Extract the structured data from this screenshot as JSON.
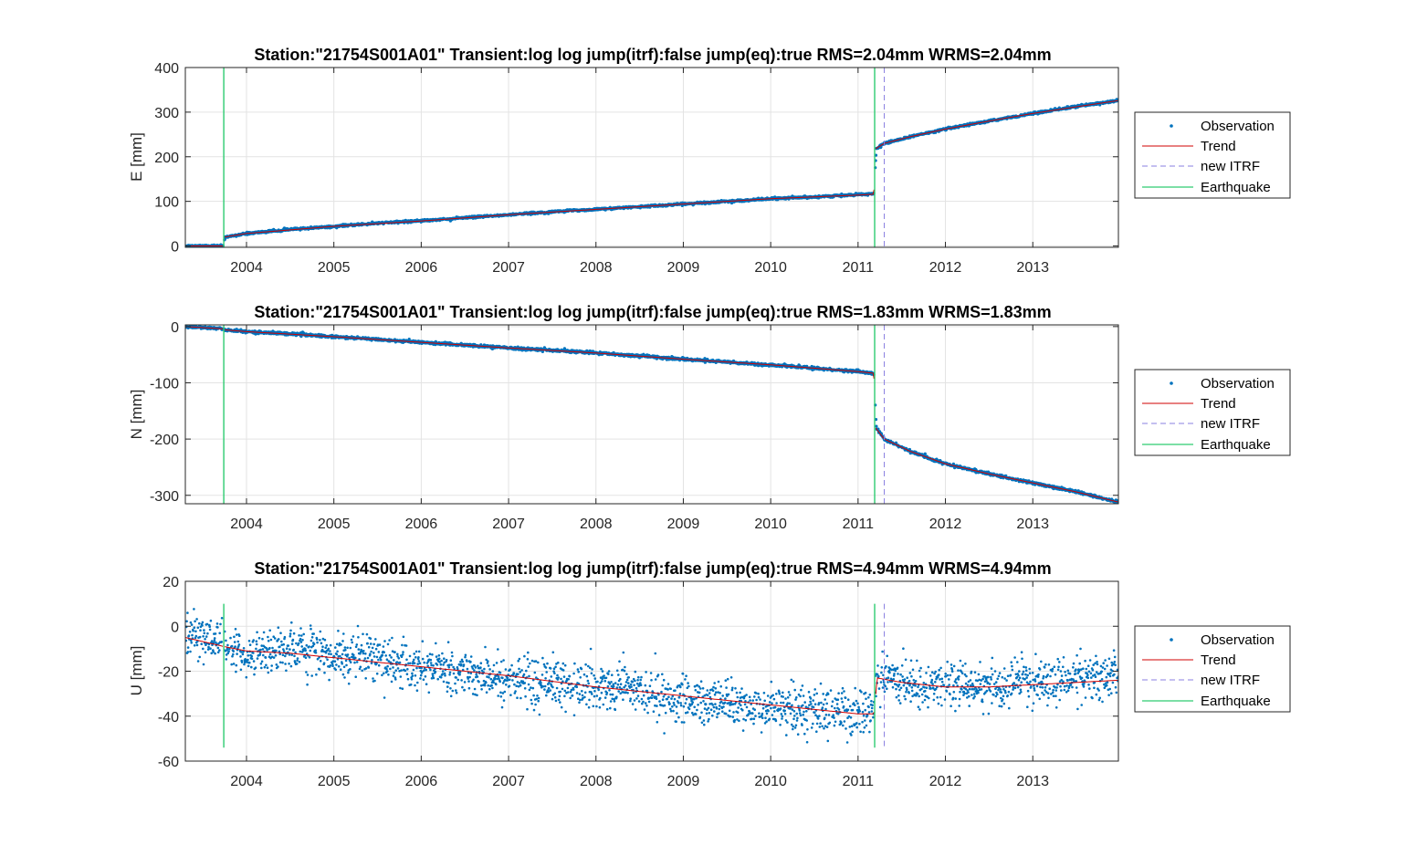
{
  "colors": {
    "observation": "#0072BD",
    "trend": "#D00000",
    "new_itrf": "#8A7FE0",
    "earthquake": "#2ECC71",
    "grid": "#E3E3E3",
    "axis": "#262626"
  },
  "legend": {
    "placement": "outside-right",
    "entries": [
      "Observation",
      "Trend",
      "new ITRF",
      "Earthquake"
    ]
  },
  "chart_data": [
    {
      "type": "scatter",
      "title": "Station:\"21754S001A01\" Transient:log log jump(itrf):false  jump(eq):true  RMS=2.04mm WRMS=2.04mm",
      "ylabel": "E [mm]",
      "xlabel": "",
      "xlim": [
        2003.3,
        2013.98
      ],
      "ylim": [
        -3,
        400
      ],
      "yticks": [
        0,
        100,
        200,
        300,
        400
      ],
      "ytick_labels": [
        "0",
        "100",
        "200",
        "300",
        "400"
      ],
      "xticks": [
        2004,
        2005,
        2006,
        2007,
        2008,
        2009,
        2010,
        2011,
        2012,
        2013
      ],
      "xtick_labels": [
        "2004",
        "2005",
        "2006",
        "2007",
        "2008",
        "2009",
        "2010",
        "2011",
        "2012",
        "2013"
      ],
      "grid": true,
      "earthquakes": [
        2003.74,
        2011.19
      ],
      "new_itrf": [
        2011.3
      ],
      "series": [
        {
          "name": "Trend",
          "x": [
            2003.3,
            2003.73,
            2003.75,
            2004.0,
            2004.5,
            2005.0,
            2006.0,
            2007.0,
            2008.0,
            2009.0,
            2010.0,
            2011.0,
            2011.18,
            2011.2,
            2011.3,
            2011.6,
            2012.0,
            2012.5,
            2013.0,
            2013.5,
            2013.98
          ],
          "y": [
            0,
            0,
            20,
            28,
            36,
            44,
            56,
            70,
            82,
            94,
            106,
            114,
            116,
            218,
            230,
            245,
            262,
            280,
            297,
            312,
            326
          ]
        },
        {
          "name": "Observation",
          "x": [
            2003.3,
            2003.6,
            2003.73,
            2003.76,
            2004.0,
            2004.5,
            2005.0,
            2005.5,
            2006.0,
            2006.5,
            2007.0,
            2007.5,
            2008.0,
            2008.5,
            2009.0,
            2009.5,
            2010.0,
            2010.5,
            2011.0,
            2011.18,
            2011.21,
            2011.3,
            2011.6,
            2012.0,
            2012.5,
            2013.0,
            2013.5,
            2013.98
          ],
          "y": [
            0,
            0,
            0,
            20,
            28,
            37,
            44,
            51,
            57,
            63,
            70,
            77,
            82,
            88,
            94,
            100,
            106,
            110,
            115,
            117,
            218,
            230,
            245,
            262,
            280,
            297,
            313,
            326
          ]
        }
      ]
    },
    {
      "type": "scatter",
      "title": "Station:\"21754S001A01\" Transient:log log jump(itrf):false  jump(eq):true  RMS=1.83mm WRMS=1.83mm",
      "ylabel": "N [mm]",
      "xlabel": "",
      "xlim": [
        2003.3,
        2013.98
      ],
      "ylim": [
        -315,
        3
      ],
      "yticks": [
        -300,
        -200,
        -100,
        0
      ],
      "ytick_labels": [
        "-300",
        "-200",
        "-100",
        "0"
      ],
      "xticks": [
        2004,
        2005,
        2006,
        2007,
        2008,
        2009,
        2010,
        2011,
        2012,
        2013
      ],
      "xtick_labels": [
        "2004",
        "2005",
        "2006",
        "2007",
        "2008",
        "2009",
        "2010",
        "2011",
        "2012",
        "2013"
      ],
      "grid": true,
      "earthquakes": [
        2003.74,
        2011.19
      ],
      "new_itrf": [
        2011.3
      ],
      "series": [
        {
          "name": "Trend",
          "x": [
            2003.3,
            2003.73,
            2003.76,
            2004.0,
            2005.0,
            2006.0,
            2007.0,
            2008.0,
            2009.0,
            2010.0,
            2011.0,
            2011.18,
            2011.2,
            2011.3,
            2011.6,
            2012.0,
            2012.5,
            2013.0,
            2013.5,
            2013.98
          ],
          "y": [
            0,
            -4,
            -6,
            -9,
            -18,
            -28,
            -38,
            -47,
            -58,
            -68,
            -80,
            -83,
            -180,
            -200,
            -222,
            -244,
            -262,
            -278,
            -294,
            -312
          ]
        },
        {
          "name": "Observation",
          "x": [
            2003.3,
            2003.73,
            2003.76,
            2004.0,
            2004.5,
            2005.0,
            2005.5,
            2006.0,
            2006.5,
            2007.0,
            2007.5,
            2008.0,
            2008.5,
            2009.0,
            2009.5,
            2010.0,
            2010.5,
            2011.0,
            2011.18,
            2011.21,
            2011.3,
            2011.6,
            2012.0,
            2012.5,
            2013.0,
            2013.5,
            2013.98
          ],
          "y": [
            0,
            -4,
            -6,
            -9,
            -13,
            -18,
            -23,
            -28,
            -33,
            -38,
            -42,
            -47,
            -52,
            -58,
            -63,
            -68,
            -74,
            -80,
            -83,
            -180,
            -200,
            -222,
            -244,
            -262,
            -278,
            -294,
            -312
          ]
        }
      ]
    },
    {
      "type": "scatter",
      "title": "Station:\"21754S001A01\" Transient:log log jump(itrf):false  jump(eq):true  RMS=4.94mm WRMS=4.94mm",
      "ylabel": "U [mm]",
      "xlabel": "",
      "xlim": [
        2003.3,
        2013.98
      ],
      "ylim": [
        -60,
        20
      ],
      "yticks": [
        -60,
        -40,
        -20,
        0,
        20
      ],
      "ytick_labels": [
        "-60",
        "-40",
        "-20",
        "0",
        "20"
      ],
      "xticks": [
        2004,
        2005,
        2006,
        2007,
        2008,
        2009,
        2010,
        2011,
        2012,
        2013
      ],
      "xtick_labels": [
        "2004",
        "2005",
        "2006",
        "2007",
        "2008",
        "2009",
        "2010",
        "2011",
        "2012",
        "2013"
      ],
      "grid": true,
      "earthquakes": [
        2003.74,
        2011.19
      ],
      "new_itrf": [
        2011.3
      ],
      "noise_sd_mm": 4.94,
      "series": [
        {
          "name": "Trend",
          "x": [
            2003.3,
            2003.74,
            2004.0,
            2004.5,
            2005.0,
            2006.0,
            2007.0,
            2008.0,
            2009.0,
            2010.0,
            2010.5,
            2011.0,
            2011.18,
            2011.22,
            2011.5,
            2012.0,
            2012.5,
            2013.0,
            2013.5,
            2013.98
          ],
          "y": [
            -5,
            -9,
            -11,
            -12,
            -14,
            -18,
            -22,
            -27,
            -31,
            -35,
            -37,
            -39,
            -39,
            -23,
            -25,
            -27,
            -27,
            -26,
            -25,
            -24
          ]
        },
        {
          "name": "Observation",
          "x": [
            2003.3,
            2003.74,
            2004.0,
            2004.5,
            2005.0,
            2005.5,
            2006.0,
            2006.5,
            2007.0,
            2007.5,
            2008.0,
            2008.5,
            2009.0,
            2009.5,
            2010.0,
            2010.5,
            2011.0,
            2011.18,
            2011.22,
            2011.5,
            2012.0,
            2012.5,
            2013.0,
            2013.5,
            2013.98
          ],
          "y": [
            -3,
            -8,
            -13,
            -10,
            -14,
            -14,
            -17,
            -21,
            -23,
            -25,
            -28,
            -28,
            -33,
            -33,
            -37,
            -36,
            -39,
            -38,
            -22,
            -24,
            -27,
            -27,
            -25,
            -23,
            -22
          ]
        }
      ]
    }
  ]
}
